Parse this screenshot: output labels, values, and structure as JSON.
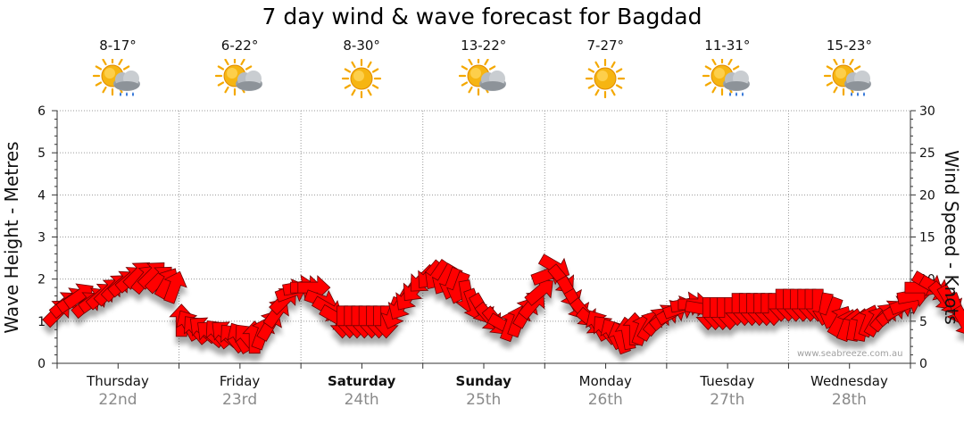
{
  "title": "7 day wind & wave forecast for Bagdad",
  "watermark": "www.seabreeze.com.au",
  "days": [
    {
      "name": "Thursday",
      "date": "22nd",
      "temp": "8-17°",
      "icon": "sun-cloud-rain-icon",
      "bold": false
    },
    {
      "name": "Friday",
      "date": "23rd",
      "temp": "6-22°",
      "icon": "sun-cloud-icon",
      "bold": false
    },
    {
      "name": "Saturday",
      "date": "24th",
      "temp": "8-30°",
      "icon": "sun-icon",
      "bold": true
    },
    {
      "name": "Sunday",
      "date": "25th",
      "temp": "13-22°",
      "icon": "sun-cloud-icon",
      "bold": true
    },
    {
      "name": "Monday",
      "date": "26th",
      "temp": "7-27°",
      "icon": "sun-icon",
      "bold": false
    },
    {
      "name": "Tuesday",
      "date": "27th",
      "temp": "11-31°",
      "icon": "sun-cloud-rain-icon",
      "bold": false
    },
    {
      "name": "Wednesday",
      "date": "28th",
      "temp": "15-23°",
      "icon": "sun-cloud-rain-icon",
      "bold": false
    }
  ],
  "colors": {
    "arrow": "#ff0000",
    "arrow_edge": "#6a0000",
    "grid": "#9a9a9a",
    "axis": "#333333"
  },
  "chart_data": {
    "type": "scatter",
    "title": "7 day wind & wave forecast for Bagdad",
    "ylabel_left": "Wave Height - Metres",
    "ylabel_right": "Wind Speed - Knots",
    "ylim_left": [
      0,
      6
    ],
    "ylim_right": [
      0,
      30
    ],
    "yticks_left": [
      "0",
      "1",
      "2",
      "3",
      "4",
      "5",
      "6"
    ],
    "yticks_right": [
      "0",
      "5",
      "10",
      "15",
      "20",
      "25",
      "30"
    ],
    "x_unit": "day index (0 = Thursday 22nd 00:00)",
    "grid": true,
    "series": [
      {
        "kind": "wind-arrows",
        "points": [
          [
            0.0,
            6.0,
            225
          ],
          [
            0.06,
            7.0,
            230
          ],
          [
            0.12,
            7.5,
            235
          ],
          [
            0.18,
            8.0,
            235
          ],
          [
            0.24,
            7.0,
            230
          ],
          [
            0.3,
            7.5,
            235
          ],
          [
            0.36,
            8.0,
            230
          ],
          [
            0.42,
            8.5,
            225
          ],
          [
            0.48,
            9.0,
            225
          ],
          [
            0.54,
            9.5,
            230
          ],
          [
            0.6,
            10.0,
            230
          ],
          [
            0.66,
            10.5,
            225
          ],
          [
            0.72,
            10.0,
            220
          ],
          [
            0.78,
            10.5,
            225
          ],
          [
            0.84,
            10.0,
            225
          ],
          [
            0.9,
            9.5,
            210
          ],
          [
            0.96,
            9.0,
            200
          ],
          [
            1.02,
            5.0,
            180
          ],
          [
            1.08,
            4.5,
            150
          ],
          [
            1.14,
            4.0,
            140
          ],
          [
            1.2,
            4.0,
            130
          ],
          [
            1.26,
            3.5,
            130
          ],
          [
            1.32,
            3.5,
            140
          ],
          [
            1.38,
            3.5,
            130
          ],
          [
            1.44,
            3.0,
            140
          ],
          [
            1.5,
            3.0,
            150
          ],
          [
            1.56,
            3.0,
            140
          ],
          [
            1.62,
            3.0,
            180
          ],
          [
            1.68,
            3.5,
            200
          ],
          [
            1.74,
            4.5,
            210
          ],
          [
            1.8,
            6.0,
            215
          ],
          [
            1.86,
            7.5,
            225
          ],
          [
            1.92,
            8.5,
            250
          ],
          [
            1.98,
            9.0,
            260
          ],
          [
            2.04,
            9.0,
            270
          ],
          [
            2.1,
            9.0,
            270
          ],
          [
            2.16,
            7.5,
            290
          ],
          [
            2.22,
            6.5,
            300
          ],
          [
            2.28,
            5.5,
            300
          ],
          [
            2.34,
            5.0,
            0
          ],
          [
            2.4,
            5.0,
            0
          ],
          [
            2.46,
            5.0,
            0
          ],
          [
            2.52,
            5.0,
            0
          ],
          [
            2.58,
            5.0,
            0
          ],
          [
            2.64,
            5.0,
            0
          ],
          [
            2.7,
            5.0,
            0
          ],
          [
            2.76,
            6.0,
            20
          ],
          [
            2.82,
            7.0,
            30
          ],
          [
            2.88,
            8.0,
            35
          ],
          [
            2.94,
            9.0,
            40
          ],
          [
            3.0,
            10.0,
            45
          ],
          [
            3.06,
            10.5,
            40
          ],
          [
            3.12,
            10.5,
            35
          ],
          [
            3.18,
            10.0,
            30
          ],
          [
            3.24,
            9.5,
            20
          ],
          [
            3.3,
            9.0,
            20
          ],
          [
            3.36,
            8.0,
            350
          ],
          [
            3.42,
            7.0,
            340
          ],
          [
            3.48,
            6.5,
            330
          ],
          [
            3.54,
            5.5,
            320
          ],
          [
            3.6,
            5.0,
            320
          ],
          [
            3.66,
            4.5,
            300
          ],
          [
            3.72,
            4.5,
            200
          ],
          [
            3.78,
            5.0,
            200
          ],
          [
            3.84,
            6.0,
            210
          ],
          [
            3.9,
            7.0,
            220
          ],
          [
            3.96,
            8.5,
            230
          ],
          [
            4.02,
            10.5,
            250
          ],
          [
            4.08,
            11.5,
            300
          ],
          [
            4.14,
            10.0,
            320
          ],
          [
            4.2,
            8.5,
            330
          ],
          [
            4.26,
            7.0,
            330
          ],
          [
            4.32,
            6.0,
            320
          ],
          [
            4.38,
            5.0,
            310
          ],
          [
            4.44,
            4.5,
            150
          ],
          [
            4.5,
            4.0,
            140
          ],
          [
            4.56,
            3.5,
            150
          ],
          [
            4.62,
            3.0,
            160
          ],
          [
            4.68,
            3.5,
            170
          ],
          [
            4.74,
            4.0,
            180
          ],
          [
            4.8,
            4.0,
            200
          ],
          [
            4.86,
            4.5,
            210
          ],
          [
            4.92,
            5.0,
            220
          ],
          [
            4.98,
            5.5,
            230
          ],
          [
            5.04,
            6.0,
            240
          ],
          [
            5.1,
            6.5,
            250
          ],
          [
            5.16,
            7.0,
            260
          ],
          [
            5.22,
            7.0,
            270
          ],
          [
            5.28,
            6.5,
            280
          ],
          [
            5.34,
            6.0,
            0
          ],
          [
            5.4,
            6.0,
            0
          ],
          [
            5.46,
            6.0,
            0
          ],
          [
            5.52,
            6.0,
            0
          ],
          [
            5.58,
            6.5,
            0
          ],
          [
            5.64,
            6.5,
            0
          ],
          [
            5.7,
            6.5,
            0
          ],
          [
            5.76,
            6.5,
            0
          ],
          [
            5.82,
            6.5,
            0
          ],
          [
            5.88,
            6.5,
            0
          ],
          [
            5.94,
            7.0,
            0
          ],
          [
            6.0,
            7.0,
            0
          ],
          [
            6.06,
            7.0,
            0
          ],
          [
            6.12,
            7.0,
            0
          ],
          [
            6.18,
            7.0,
            0
          ],
          [
            6.24,
            7.0,
            0
          ],
          [
            6.3,
            6.5,
            10
          ],
          [
            6.36,
            6.0,
            20
          ],
          [
            6.42,
            5.0,
            210
          ],
          [
            6.48,
            4.5,
            200
          ],
          [
            6.54,
            4.5,
            190
          ],
          [
            6.6,
            4.5,
            190
          ],
          [
            6.66,
            5.0,
            200
          ],
          [
            6.72,
            5.0,
            210
          ],
          [
            6.78,
            5.5,
            220
          ],
          [
            6.84,
            6.0,
            230
          ],
          [
            6.9,
            6.5,
            240
          ],
          [
            6.96,
            7.0,
            250
          ],
          [
            7.02,
            8.0,
            260
          ],
          [
            7.08,
            9.0,
            270
          ],
          [
            7.14,
            9.5,
            300
          ],
          [
            7.2,
            9.0,
            300
          ],
          [
            7.26,
            8.0,
            320
          ],
          [
            7.32,
            7.5,
            330
          ],
          [
            7.38,
            6.5,
            340
          ],
          [
            7.44,
            5.0,
            330
          ]
        ]
      }
    ]
  }
}
